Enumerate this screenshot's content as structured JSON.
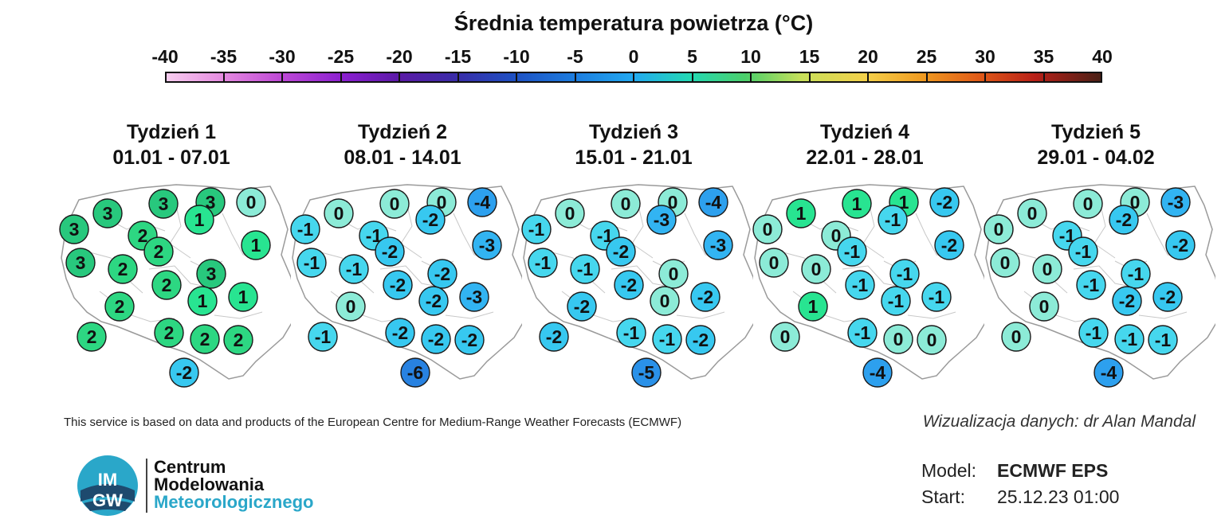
{
  "title": "Średnia temperatura powietrza (°C)",
  "scale": {
    "ticks": [
      "-40",
      "-35",
      "-30",
      "-25",
      "-20",
      "-15",
      "-10",
      "-5",
      "0",
      "5",
      "10",
      "15",
      "20",
      "25",
      "30",
      "35",
      "40"
    ],
    "min": -40,
    "max": 40,
    "colors": {
      "-40": "#f7cdef",
      "-20": "#5a1aa6",
      "-10": "#1d7fe0",
      "-5": "#22a9f0",
      "0": "#22d8b4",
      "5": "#4ccf6a",
      "10": "#c8e05a",
      "20": "#f09a20",
      "30": "#b82018",
      "40": "#4a2016"
    }
  },
  "weeks": [
    {
      "label": "Tydzień 1",
      "dates": "01.01 - 07.01",
      "values": [
        3,
        3,
        3,
        1,
        0,
        3,
        2,
        1,
        3,
        2,
        2,
        2,
        3,
        2,
        1,
        1,
        2,
        2,
        2,
        2,
        -2
      ]
    },
    {
      "label": "Tydzień 2",
      "dates": "08.01 - 14.01",
      "values": [
        0,
        0,
        0,
        -2,
        -4,
        -1,
        -1,
        -3,
        -1,
        -1,
        -2,
        -2,
        -2,
        0,
        -2,
        -3,
        -1,
        -2,
        -2,
        -2,
        -6
      ]
    },
    {
      "label": "Tydzień 3",
      "dates": "15.01 - 21.01",
      "values": [
        0,
        0,
        0,
        -3,
        -4,
        -1,
        -1,
        -3,
        -1,
        -1,
        -2,
        -2,
        0,
        -2,
        0,
        -2,
        -2,
        -1,
        -1,
        -2,
        -5
      ]
    },
    {
      "label": "Tydzień 4",
      "dates": "22.01 - 28.01",
      "values": [
        1,
        1,
        1,
        -1,
        -2,
        0,
        0,
        -2,
        0,
        0,
        -1,
        -1,
        -1,
        1,
        -1,
        -1,
        0,
        -1,
        0,
        0,
        -4
      ]
    },
    {
      "label": "Tydzień 5",
      "dates": "29.01 - 04.02",
      "values": [
        0,
        0,
        0,
        -2,
        -3,
        0,
        -1,
        -2,
        0,
        0,
        -1,
        -1,
        -1,
        0,
        -2,
        -2,
        0,
        -1,
        -1,
        -1,
        -4
      ]
    }
  ],
  "footer_note": "This service is based on data and products of the European Centre for Medium-Range Weather Forecasts (ECMWF)",
  "credit": "Wizualizacja danych: dr Alan Mandal",
  "logo": {
    "line1": "Centrum",
    "line2": "Modelowania",
    "line3": "Meteorologicznego",
    "mark": "IMGW"
  },
  "model": {
    "model_label": "Model:",
    "model_value": "ECMWF EPS",
    "start_label": "Start:",
    "start_value": "25.12.23 01:00"
  }
}
